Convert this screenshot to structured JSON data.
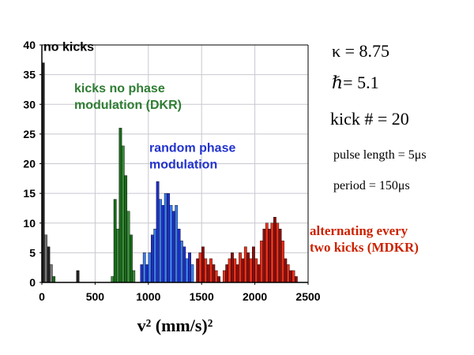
{
  "chart_data": {
    "type": "bar",
    "xlabel": "v² (mm/s)²",
    "ylabel": "",
    "xlim": [
      0,
      2500
    ],
    "ylim": [
      0,
      40
    ],
    "x_ticks": [
      0,
      500,
      1000,
      1500,
      2000,
      2500
    ],
    "y_ticks": [
      0,
      5,
      10,
      15,
      20,
      25,
      30,
      35,
      40
    ],
    "grid": true,
    "series": [
      {
        "name": "no kicks",
        "color": "#222222",
        "color_light": "#777777",
        "bins": [
          {
            "x": 0,
            "w": 25,
            "y": 37
          },
          {
            "x": 25,
            "w": 25,
            "y": 8
          },
          {
            "x": 50,
            "w": 25,
            "y": 6
          },
          {
            "x": 75,
            "w": 25,
            "y": 3
          },
          {
            "x": 325,
            "w": 25,
            "y": 2
          }
        ]
      },
      {
        "name": "kicks no phase modulation (DKR)",
        "color": "#1a6b1a",
        "color_light": "#3a8a3a",
        "bins": [
          {
            "x": 100,
            "w": 25,
            "y": 1
          },
          {
            "x": 650,
            "w": 25,
            "y": 1
          },
          {
            "x": 675,
            "w": 25,
            "y": 14
          },
          {
            "x": 700,
            "w": 25,
            "y": 9
          },
          {
            "x": 725,
            "w": 25,
            "y": 26
          },
          {
            "x": 750,
            "w": 25,
            "y": 23
          },
          {
            "x": 775,
            "w": 25,
            "y": 18
          },
          {
            "x": 800,
            "w": 25,
            "y": 12
          },
          {
            "x": 825,
            "w": 25,
            "y": 8
          },
          {
            "x": 850,
            "w": 25,
            "y": 2
          }
        ]
      },
      {
        "name": "random phase modulation",
        "color": "#1f2fc9",
        "color_light": "#3a7be8",
        "bins": [
          {
            "x": 925,
            "w": 25,
            "y": 3
          },
          {
            "x": 950,
            "w": 25,
            "y": 5
          },
          {
            "x": 975,
            "w": 25,
            "y": 3
          },
          {
            "x": 1000,
            "w": 25,
            "y": 5
          },
          {
            "x": 1025,
            "w": 25,
            "y": 8
          },
          {
            "x": 1050,
            "w": 25,
            "y": 9
          },
          {
            "x": 1075,
            "w": 25,
            "y": 17
          },
          {
            "x": 1100,
            "w": 25,
            "y": 14
          },
          {
            "x": 1125,
            "w": 25,
            "y": 13
          },
          {
            "x": 1150,
            "w": 25,
            "y": 15
          },
          {
            "x": 1175,
            "w": 25,
            "y": 15
          },
          {
            "x": 1200,
            "w": 25,
            "y": 13
          },
          {
            "x": 1225,
            "w": 25,
            "y": 12
          },
          {
            "x": 1250,
            "w": 25,
            "y": 13
          },
          {
            "x": 1275,
            "w": 25,
            "y": 9
          },
          {
            "x": 1300,
            "w": 25,
            "y": 7
          },
          {
            "x": 1325,
            "w": 25,
            "y": 6
          },
          {
            "x": 1350,
            "w": 25,
            "y": 4
          },
          {
            "x": 1375,
            "w": 25,
            "y": 5
          },
          {
            "x": 1400,
            "w": 25,
            "y": 3
          }
        ]
      },
      {
        "name": "alternating every two kicks (MDKR)",
        "color": "#8b0f0f",
        "color_light": "#e8301a",
        "bins": [
          {
            "x": 1450,
            "w": 25,
            "y": 4
          },
          {
            "x": 1475,
            "w": 25,
            "y": 5
          },
          {
            "x": 1500,
            "w": 25,
            "y": 6
          },
          {
            "x": 1525,
            "w": 25,
            "y": 4
          },
          {
            "x": 1550,
            "w": 25,
            "y": 3
          },
          {
            "x": 1575,
            "w": 25,
            "y": 4
          },
          {
            "x": 1600,
            "w": 25,
            "y": 3
          },
          {
            "x": 1625,
            "w": 25,
            "y": 2
          },
          {
            "x": 1650,
            "w": 25,
            "y": 1
          },
          {
            "x": 1700,
            "w": 25,
            "y": 2
          },
          {
            "x": 1725,
            "w": 25,
            "y": 3
          },
          {
            "x": 1750,
            "w": 25,
            "y": 4
          },
          {
            "x": 1775,
            "w": 25,
            "y": 5
          },
          {
            "x": 1800,
            "w": 25,
            "y": 4
          },
          {
            "x": 1825,
            "w": 25,
            "y": 3
          },
          {
            "x": 1850,
            "w": 25,
            "y": 5
          },
          {
            "x": 1875,
            "w": 25,
            "y": 4
          },
          {
            "x": 1900,
            "w": 25,
            "y": 6
          },
          {
            "x": 1925,
            "w": 25,
            "y": 5
          },
          {
            "x": 1950,
            "w": 25,
            "y": 4
          },
          {
            "x": 1975,
            "w": 25,
            "y": 6
          },
          {
            "x": 2000,
            "w": 25,
            "y": 4
          },
          {
            "x": 2025,
            "w": 25,
            "y": 3
          },
          {
            "x": 2050,
            "w": 25,
            "y": 7
          },
          {
            "x": 2075,
            "w": 25,
            "y": 9
          },
          {
            "x": 2100,
            "w": 25,
            "y": 10
          },
          {
            "x": 2125,
            "w": 25,
            "y": 9
          },
          {
            "x": 2150,
            "w": 25,
            "y": 10
          },
          {
            "x": 2175,
            "w": 25,
            "y": 11
          },
          {
            "x": 2200,
            "w": 25,
            "y": 10
          },
          {
            "x": 2225,
            "w": 25,
            "y": 9
          },
          {
            "x": 2250,
            "w": 25,
            "y": 7
          },
          {
            "x": 2275,
            "w": 25,
            "y": 4
          },
          {
            "x": 2300,
            "w": 25,
            "y": 3
          },
          {
            "x": 2325,
            "w": 25,
            "y": 2
          },
          {
            "x": 2350,
            "w": 25,
            "y": 2
          },
          {
            "x": 2375,
            "w": 25,
            "y": 1
          }
        ]
      }
    ],
    "annotations": [
      {
        "id": "label-no-kicks",
        "lines": [
          "no kicks"
        ],
        "color": "#000000",
        "font": "sans",
        "anchor_x": 5,
        "anchor_y": 39
      },
      {
        "id": "label-dkr",
        "lines": [
          "kicks no phase",
          "modulation (DKR)"
        ],
        "color": "#2e7d32",
        "font": "sans",
        "anchor_x": 300,
        "anchor_y": 32
      },
      {
        "id": "label-random",
        "lines": [
          "random phase",
          "modulation"
        ],
        "color": "#2233cc",
        "font": "sans",
        "anchor_x": 1000,
        "anchor_y": 22
      },
      {
        "id": "label-mdkr",
        "lines": [
          "alternating every",
          "two kicks (MDKR)"
        ],
        "color": "#cc2200",
        "font": "serif",
        "anchor_x": 2500,
        "anchor_y": 8
      }
    ]
  },
  "params": {
    "kappa": "κ = 8.75",
    "hbar": "= 5.1",
    "hbar_symbol": "ℏ",
    "kick": "kick # = 20",
    "pulse_length": "pulse length = 5μs",
    "period": "period = 150μs"
  },
  "colors": {
    "axis": "#000000",
    "grid": "#c8c8d0",
    "bar_edge": "#000000"
  }
}
